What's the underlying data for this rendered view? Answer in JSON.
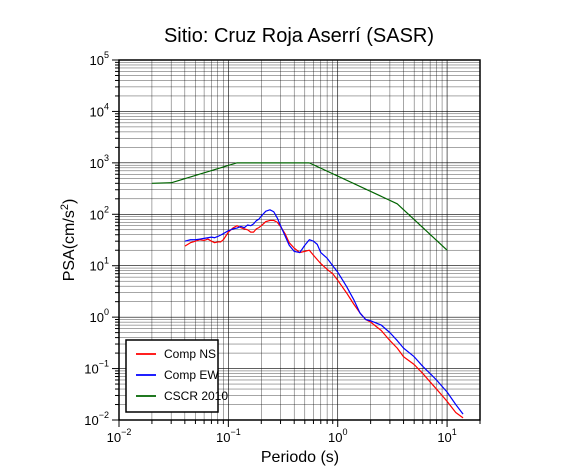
{
  "chart_data": {
    "type": "line",
    "title": "Sitio: Cruz Roja Aserrí (SASR)",
    "xlabel": "Periodo (s)",
    "ylabel": {
      "text": "PSA(cm/s",
      "sup": "2",
      "close": ")"
    },
    "xscale": "log",
    "yscale": "log",
    "xlim": [
      0.01,
      20
    ],
    "ylim": [
      0.01,
      100000
    ],
    "grid": true,
    "x_ticks": [
      {
        "base": "10",
        "exp": "−2",
        "value": 0.01
      },
      {
        "base": "10",
        "exp": "−1",
        "value": 0.1
      },
      {
        "base": "10",
        "exp": "0",
        "value": 1
      },
      {
        "base": "10",
        "exp": "1",
        "value": 10
      }
    ],
    "y_ticks": [
      {
        "base": "10",
        "exp": "−2",
        "value": 0.01
      },
      {
        "base": "10",
        "exp": "−1",
        "value": 0.1
      },
      {
        "base": "10",
        "exp": "0",
        "value": 1
      },
      {
        "base": "10",
        "exp": "1",
        "value": 10
      },
      {
        "base": "10",
        "exp": "2",
        "value": 100
      },
      {
        "base": "10",
        "exp": "3",
        "value": 1000
      },
      {
        "base": "10",
        "exp": "4",
        "value": 10000
      },
      {
        "base": "10",
        "exp": "5",
        "value": 100000
      }
    ],
    "legend_position": "bottom-left",
    "series": [
      {
        "name": "Comp NS",
        "color": "#ff0000",
        "points": [
          [
            0.04,
            24
          ],
          [
            0.045,
            28
          ],
          [
            0.05,
            30
          ],
          [
            0.055,
            32
          ],
          [
            0.06,
            31
          ],
          [
            0.065,
            33
          ],
          [
            0.07,
            30
          ],
          [
            0.075,
            28
          ],
          [
            0.08,
            29
          ],
          [
            0.085,
            29
          ],
          [
            0.09,
            32
          ],
          [
            0.1,
            45
          ],
          [
            0.11,
            54
          ],
          [
            0.12,
            60
          ],
          [
            0.13,
            55
          ],
          [
            0.14,
            52
          ],
          [
            0.15,
            50
          ],
          [
            0.16,
            45
          ],
          [
            0.17,
            45
          ],
          [
            0.18,
            52
          ],
          [
            0.19,
            55
          ],
          [
            0.2,
            60
          ],
          [
            0.22,
            72
          ],
          [
            0.24,
            76
          ],
          [
            0.26,
            76
          ],
          [
            0.28,
            70
          ],
          [
            0.3,
            58
          ],
          [
            0.33,
            42
          ],
          [
            0.36,
            28
          ],
          [
            0.4,
            22
          ],
          [
            0.45,
            18
          ],
          [
            0.5,
            19
          ],
          [
            0.55,
            20
          ],
          [
            0.6,
            16
          ],
          [
            0.7,
            11
          ],
          [
            0.8,
            8.5
          ],
          [
            0.9,
            7
          ],
          [
            1.0,
            5.2
          ],
          [
            1.2,
            3
          ],
          [
            1.4,
            1.8
          ],
          [
            1.6,
            1.2
          ],
          [
            1.8,
            0.9
          ],
          [
            2.0,
            0.8
          ],
          [
            2.5,
            0.55
          ],
          [
            3.0,
            0.35
          ],
          [
            3.5,
            0.25
          ],
          [
            4,
            0.17
          ],
          [
            5,
            0.12
          ],
          [
            6,
            0.08
          ],
          [
            7,
            0.055
          ],
          [
            8,
            0.04
          ],
          [
            9,
            0.03
          ],
          [
            10,
            0.023
          ],
          [
            12,
            0.014
          ],
          [
            14,
            0.011
          ]
        ]
      },
      {
        "name": "Comp EW",
        "color": "#0000ff",
        "points": [
          [
            0.04,
            30
          ],
          [
            0.045,
            32
          ],
          [
            0.05,
            32
          ],
          [
            0.055,
            33
          ],
          [
            0.06,
            34
          ],
          [
            0.065,
            35
          ],
          [
            0.07,
            36
          ],
          [
            0.075,
            35
          ],
          [
            0.08,
            37
          ],
          [
            0.09,
            42
          ],
          [
            0.1,
            48
          ],
          [
            0.11,
            52
          ],
          [
            0.12,
            54
          ],
          [
            0.13,
            58
          ],
          [
            0.14,
            55
          ],
          [
            0.15,
            62
          ],
          [
            0.16,
            60
          ],
          [
            0.17,
            65
          ],
          [
            0.18,
            75
          ],
          [
            0.19,
            80
          ],
          [
            0.2,
            92
          ],
          [
            0.22,
            115
          ],
          [
            0.24,
            122
          ],
          [
            0.26,
            112
          ],
          [
            0.28,
            85
          ],
          [
            0.3,
            60
          ],
          [
            0.33,
            38
          ],
          [
            0.36,
            25
          ],
          [
            0.4,
            19
          ],
          [
            0.45,
            18
          ],
          [
            0.5,
            25
          ],
          [
            0.55,
            32
          ],
          [
            0.6,
            30
          ],
          [
            0.65,
            26
          ],
          [
            0.7,
            18
          ],
          [
            0.8,
            14
          ],
          [
            0.9,
            10
          ],
          [
            1.0,
            7.5
          ],
          [
            1.2,
            4
          ],
          [
            1.4,
            2.2
          ],
          [
            1.6,
            1.2
          ],
          [
            1.8,
            0.9
          ],
          [
            2.0,
            0.85
          ],
          [
            2.5,
            0.7
          ],
          [
            3.0,
            0.5
          ],
          [
            3.5,
            0.35
          ],
          [
            4,
            0.25
          ],
          [
            5,
            0.17
          ],
          [
            6,
            0.11
          ],
          [
            7,
            0.08
          ],
          [
            8,
            0.06
          ],
          [
            9,
            0.045
          ],
          [
            10,
            0.035
          ],
          [
            12,
            0.02
          ],
          [
            14,
            0.013
          ]
        ]
      },
      {
        "name": "CSCR 2010",
        "color": "#006400",
        "points": [
          [
            0.02,
            400
          ],
          [
            0.03,
            410
          ],
          [
            0.12,
            1000
          ],
          [
            0.55,
            1000
          ],
          [
            3.5,
            160
          ],
          [
            10,
            20
          ]
        ]
      }
    ]
  }
}
